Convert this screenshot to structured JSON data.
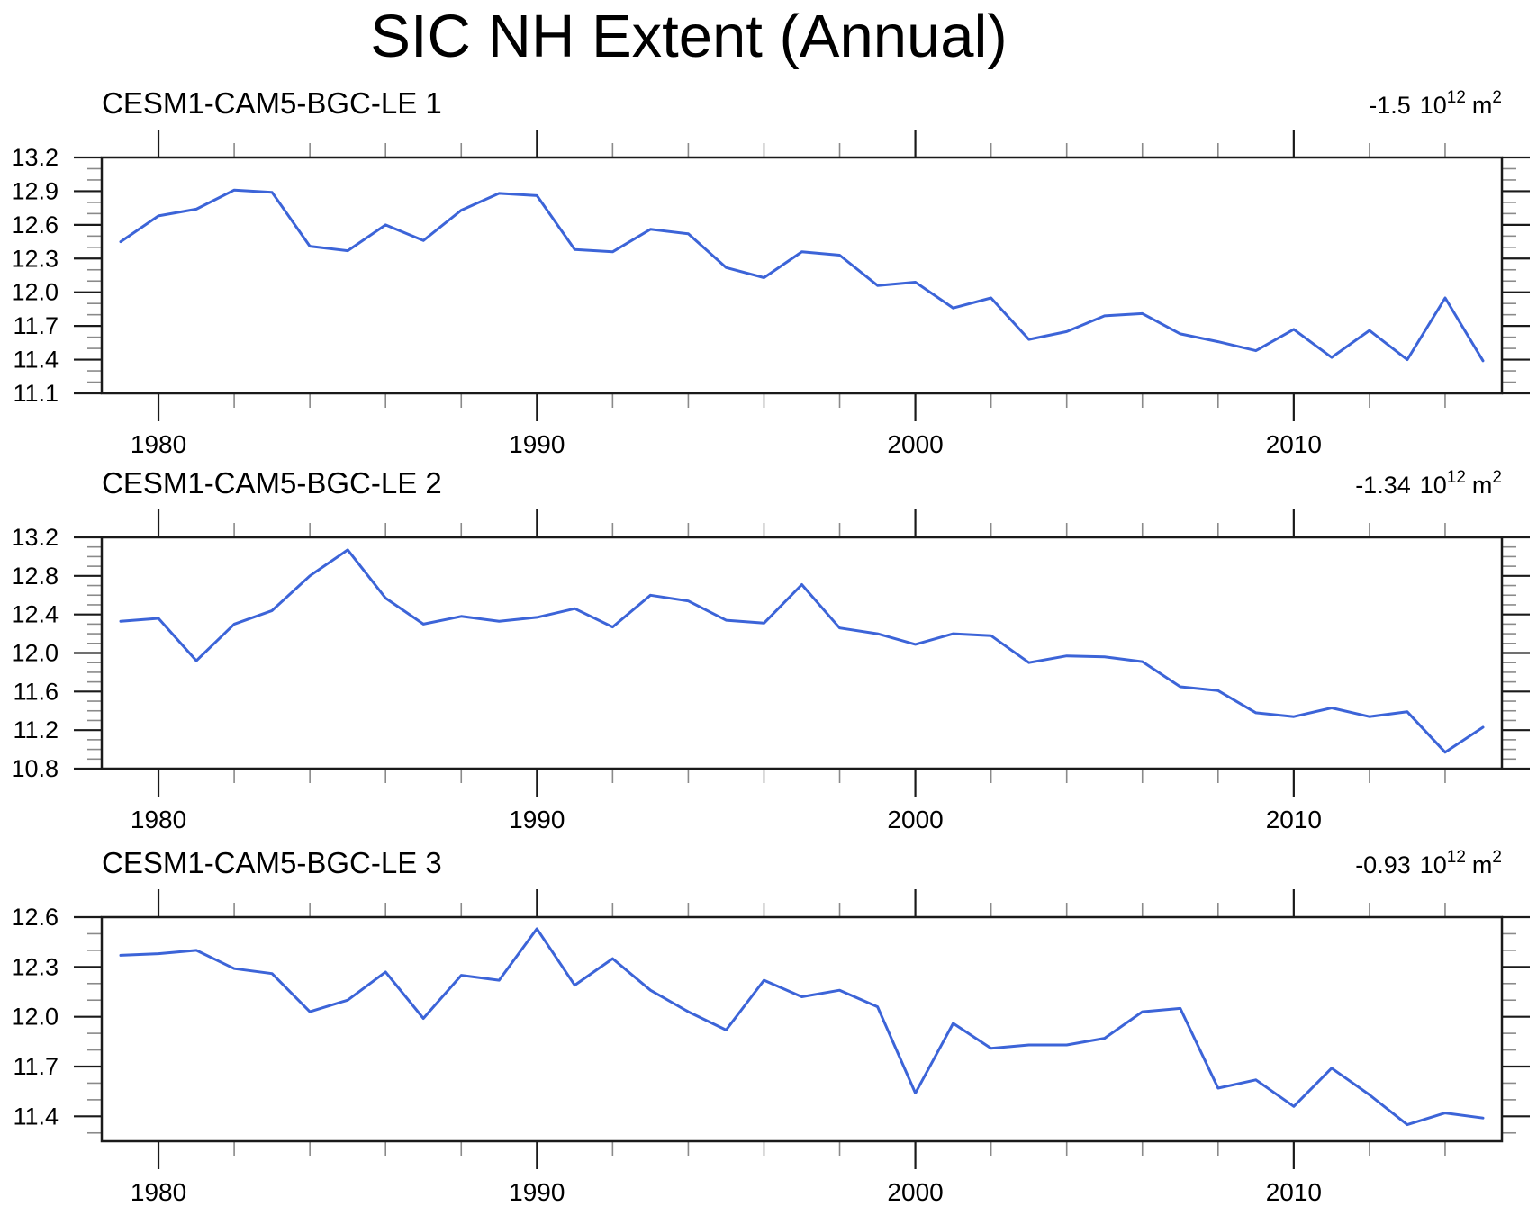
{
  "page": {
    "title": "SIC NH Extent (Annual)"
  },
  "style": {
    "line_color": "#3c64d8",
    "axis_color": "#1a1a1a",
    "minor_tick_color": "#8a8a8a",
    "text_color": "#000000",
    "background": "#ffffff"
  },
  "panels": [
    {
      "title": "CESM1-CAM5-BGC-LE 1",
      "trend": {
        "value": "-1.5",
        "power_base": "10",
        "power_exp": "12",
        "unit": "m",
        "unit_exp": "2"
      }
    },
    {
      "title": "CESM1-CAM5-BGC-LE 2",
      "trend": {
        "value": "-1.34",
        "power_base": "10",
        "power_exp": "12",
        "unit": "m",
        "unit_exp": "2"
      }
    },
    {
      "title": "CESM1-CAM5-BGC-LE 3",
      "trend": {
        "value": "-0.93",
        "power_base": "10",
        "power_exp": "12",
        "unit": "m",
        "unit_exp": "2"
      }
    }
  ],
  "chart_data": [
    {
      "type": "line",
      "title": "CESM1-CAM5-BGC-LE 1",
      "annotation": "-1.5 10^12 m^2",
      "x": [
        1979,
        1980,
        1981,
        1982,
        1983,
        1984,
        1985,
        1986,
        1987,
        1988,
        1989,
        1990,
        1991,
        1992,
        1993,
        1994,
        1995,
        1996,
        1997,
        1998,
        1999,
        2000,
        2001,
        2002,
        2003,
        2004,
        2005,
        2006,
        2007,
        2008,
        2009,
        2010,
        2011,
        2012,
        2013,
        2014,
        2015
      ],
      "values": [
        12.45,
        12.68,
        12.74,
        12.91,
        12.89,
        12.41,
        12.37,
        12.6,
        12.46,
        12.73,
        12.88,
        12.86,
        12.38,
        12.36,
        12.56,
        12.52,
        12.22,
        12.13,
        12.36,
        12.33,
        12.06,
        12.09,
        11.86,
        11.95,
        11.58,
        11.65,
        11.79,
        11.81,
        11.63,
        11.56,
        11.48,
        11.67,
        11.42,
        11.66,
        11.4,
        11.95,
        11.39
      ],
      "xlim": [
        1978.5,
        2015.5
      ],
      "ylim": [
        11.1,
        13.2
      ],
      "yticks": [
        "13.2",
        "12.9",
        "12.6",
        "12.3",
        "12.0",
        "11.7",
        "11.4",
        "11.1"
      ],
      "ytick_minor_step": 0.1,
      "xticks": [
        "1980",
        "1990",
        "2000",
        "2010"
      ],
      "xtick_minor_step": 2,
      "xlabel": "",
      "ylabel": "",
      "grid": false,
      "legend": "none"
    },
    {
      "type": "line",
      "title": "CESM1-CAM5-BGC-LE 2",
      "annotation": "-1.34 10^12 m^2",
      "x": [
        1979,
        1980,
        1981,
        1982,
        1983,
        1984,
        1985,
        1986,
        1987,
        1988,
        1989,
        1990,
        1991,
        1992,
        1993,
        1994,
        1995,
        1996,
        1997,
        1998,
        1999,
        2000,
        2001,
        2002,
        2003,
        2004,
        2005,
        2006,
        2007,
        2008,
        2009,
        2010,
        2011,
        2012,
        2013,
        2014,
        2015
      ],
      "values": [
        12.33,
        12.36,
        11.92,
        12.3,
        12.44,
        12.8,
        13.07,
        12.57,
        12.3,
        12.38,
        12.33,
        12.37,
        12.46,
        12.27,
        12.6,
        12.54,
        12.34,
        12.31,
        12.71,
        12.26,
        12.2,
        12.09,
        12.2,
        12.18,
        11.9,
        11.97,
        11.96,
        11.91,
        11.65,
        11.61,
        11.38,
        11.34,
        11.43,
        11.34,
        11.39,
        10.97,
        11.23
      ],
      "xlim": [
        1978.5,
        2015.5
      ],
      "ylim": [
        10.8,
        13.2
      ],
      "yticks": [
        "13.2",
        "12.8",
        "12.4",
        "12.0",
        "11.6",
        "11.2",
        "10.8"
      ],
      "ytick_minor_step": 0.1,
      "xticks": [
        "1980",
        "1990",
        "2000",
        "2010"
      ],
      "xtick_minor_step": 2,
      "xlabel": "",
      "ylabel": "",
      "grid": false,
      "legend": "none"
    },
    {
      "type": "line",
      "title": "CESM1-CAM5-BGC-LE 3",
      "annotation": "-0.93 10^12 m^2",
      "x": [
        1979,
        1980,
        1981,
        1982,
        1983,
        1984,
        1985,
        1986,
        1987,
        1988,
        1989,
        1990,
        1991,
        1992,
        1993,
        1994,
        1995,
        1996,
        1997,
        1998,
        1999,
        2000,
        2001,
        2002,
        2003,
        2004,
        2005,
        2006,
        2007,
        2008,
        2009,
        2010,
        2011,
        2012,
        2013,
        2014,
        2015
      ],
      "values": [
        12.37,
        12.38,
        12.4,
        12.29,
        12.26,
        12.03,
        12.1,
        12.27,
        11.99,
        12.25,
        12.22,
        12.53,
        12.19,
        12.35,
        12.16,
        12.03,
        11.92,
        12.22,
        12.12,
        12.16,
        12.06,
        11.54,
        11.96,
        11.81,
        11.83,
        11.83,
        11.87,
        12.03,
        12.05,
        11.57,
        11.62,
        11.46,
        11.69,
        11.53,
        11.35,
        11.42,
        11.39
      ],
      "xlim": [
        1978.5,
        2015.5
      ],
      "ylim": [
        11.25,
        12.6
      ],
      "yticks": [
        "12.6",
        "12.3",
        "12.0",
        "11.7",
        "11.4"
      ],
      "ytick_minor_step": 0.1,
      "xticks": [
        "1980",
        "1990",
        "2000",
        "2010"
      ],
      "xtick_minor_step": 2,
      "xlabel": "",
      "ylabel": "",
      "grid": false,
      "legend": "none"
    }
  ]
}
